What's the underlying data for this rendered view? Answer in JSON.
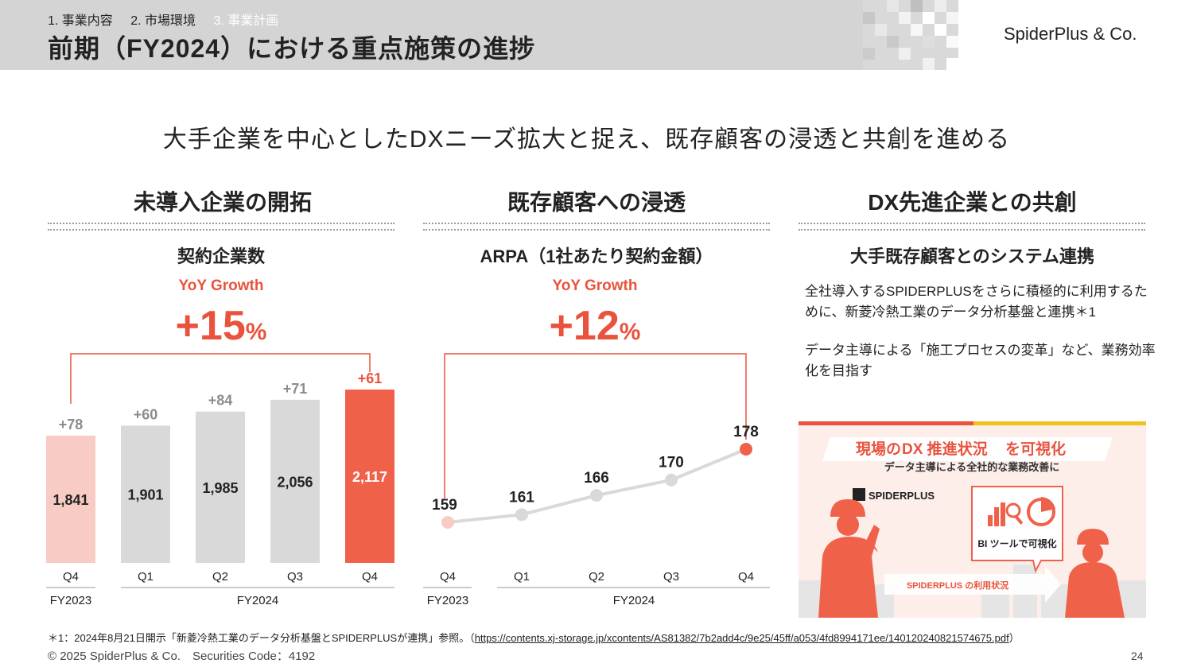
{
  "header": {
    "breadcrumbs": [
      "1. 事業内容",
      "2. 市場環境",
      "3. 事業計画"
    ],
    "title": "前期（FY2024）における重点施策の進捗",
    "logo": "SpiderPlus & Co."
  },
  "headline": "大手企業を中心としたDXニーズ拡大と捉え、既存顧客の浸透と共創を進める",
  "columns": [
    {
      "title": "未導入企業の開拓",
      "subtitle": "契約企業数",
      "yoy_label": "YoY Growth",
      "growth_value": "+15",
      "growth_unit": "%"
    },
    {
      "title": "既存顧客への浸透",
      "subtitle": "ARPA（1社あたり契約金額）",
      "yoy_label": "YoY Growth",
      "growth_value": "+12",
      "growth_unit": "%"
    },
    {
      "title": "DX先進企業との共創",
      "subtitle": "大手既存顧客とのシステム連携"
    }
  ],
  "chart_data": [
    {
      "type": "bar",
      "categories": [
        "Q4",
        "Q1",
        "Q2",
        "Q3",
        "Q4"
      ],
      "groups": [
        "FY2023",
        "FY2024"
      ],
      "values": [
        1841,
        1901,
        1985,
        2056,
        2117
      ],
      "value_labels": [
        "1,841",
        "1,901",
        "1,985",
        "2,056",
        "2,117"
      ],
      "increments": [
        "+78",
        "+60",
        "+84",
        "+71",
        "+61"
      ],
      "colors": [
        "#f8cbc4",
        "#d9d9d9",
        "#d9d9d9",
        "#d9d9d9",
        "#f0614a"
      ],
      "highlight_color": "#e9533d",
      "grid": false
    },
    {
      "type": "line",
      "categories": [
        "Q4",
        "Q1",
        "Q2",
        "Q3",
        "Q4"
      ],
      "groups": [
        "FY2023",
        "FY2024"
      ],
      "values": [
        159,
        161,
        166,
        170,
        178
      ],
      "value_labels": [
        "159",
        "161",
        "166",
        "170",
        "178"
      ],
      "line_color": "#d9d9d9",
      "start_color": "#f8cbc4",
      "end_color": "#f0614a",
      "grid": false
    }
  ],
  "desc": {
    "p1": "全社導入するSPIDERPLUSをさらに積極的に利用するために、新菱冷熱工業のデータ分析基盤と連携＊1",
    "p2": "データ主導による「施工プロセスの変革」など、業務効率化を目指す"
  },
  "banner": {
    "title_1": "現場の",
    "title_2": "DX 推進状況",
    "title_3": "を可視化",
    "subtitle": "データ主導による全社的な業務改善に",
    "brand": "SPIDERPLUS",
    "bi_label": "BI ツールで可視化",
    "arrow_label": "SPIDERPLUS の利用状況"
  },
  "footer": {
    "note_prefix": "＊1：2024年8月21日開示「新菱冷熱工業のデータ分析基盤とSPIDERPLUSが連携」参照。（",
    "note_url": "https://contents.xj-storage.jp/xcontents/AS81382/7b2add4c/9e25/45ff/a053/4fd8994171ee/140120240821574675.pdf",
    "note_suffix": "）",
    "copyright": "© 2025 SpiderPlus & Co.　Securities Code：4192",
    "page": "24"
  }
}
